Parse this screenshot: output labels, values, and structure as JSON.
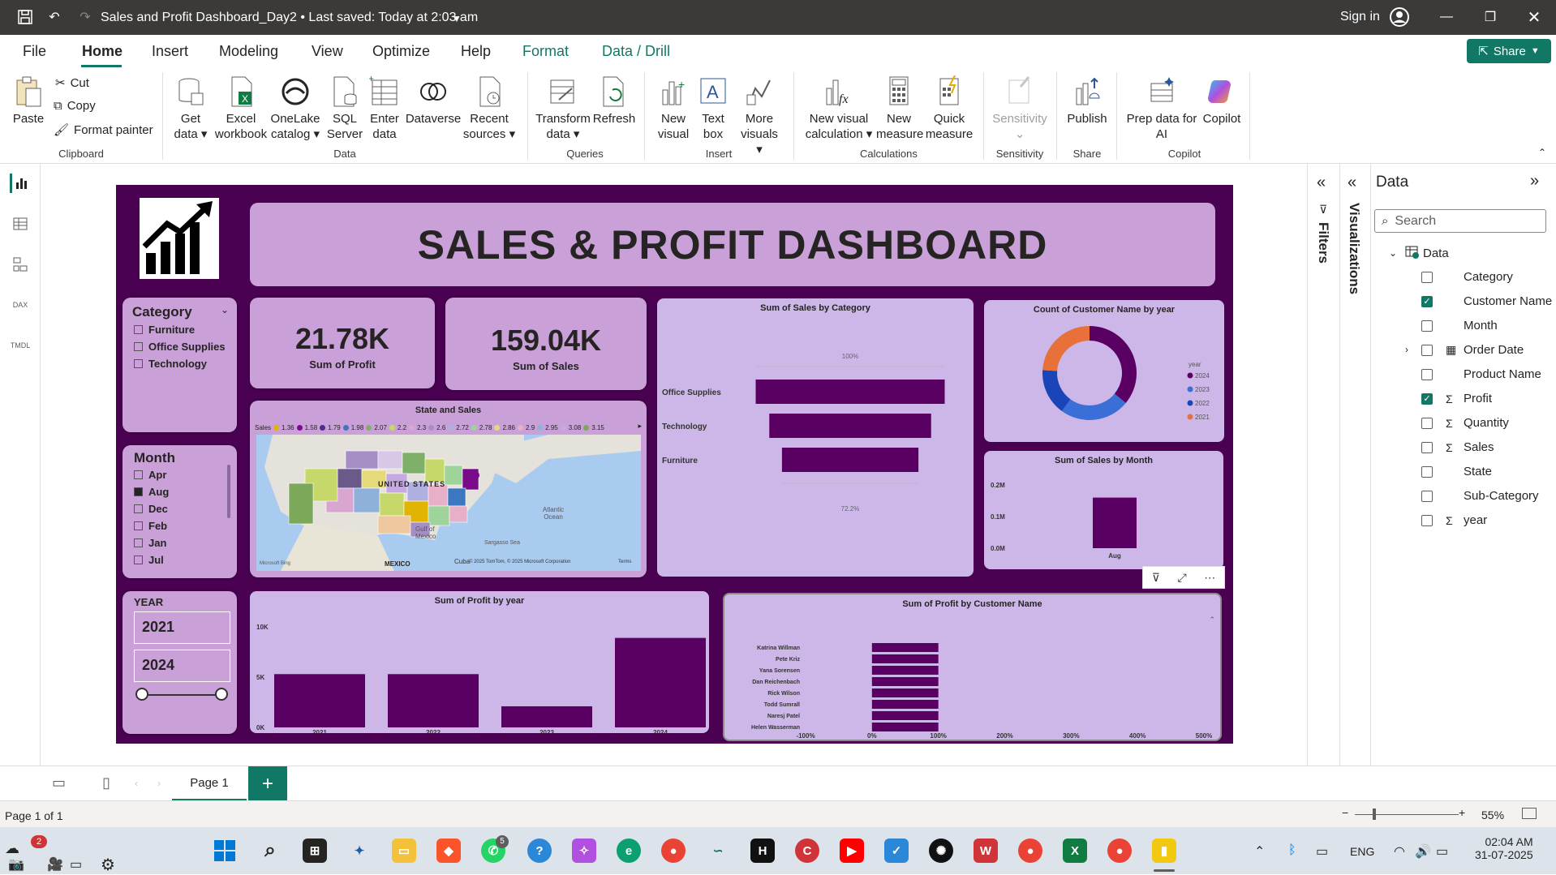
{
  "titlebar": {
    "title": "Sales and Profit Dashboard_Day2 • Last saved: Today at 2:03 am",
    "signin": "Sign in"
  },
  "menu": {
    "items": [
      "File",
      "Home",
      "Insert",
      "Modeling",
      "View",
      "Optimize",
      "Help",
      "Format",
      "Data / Drill"
    ],
    "share": "Share"
  },
  "ribbon": {
    "clipboard": {
      "paste": "Paste",
      "cut": "Cut",
      "copy": "Copy",
      "format_painter": "Format painter",
      "group": "Clipboard"
    },
    "data": {
      "get_data": "Get data",
      "excel": "Excel workbook",
      "onelake": "OneLake catalog",
      "sql": "SQL Server",
      "enter": "Enter data",
      "dataverse": "Dataverse",
      "recent": "Recent sources",
      "group": "Data"
    },
    "queries": {
      "transform": "Transform data",
      "refresh": "Refresh",
      "group": "Queries"
    },
    "insert": {
      "new_visual": "New visual",
      "text_box": "Text box",
      "more_visuals": "More visuals",
      "group": "Insert"
    },
    "calculations": {
      "new_visual_calc": "New visual calculation",
      "new_measure": "New measure",
      "quick_measure": "Quick measure",
      "group": "Calculations"
    },
    "sensitivity": {
      "label": "Sensitivity",
      "group": "Sensitivity"
    },
    "share": {
      "publish": "Publish",
      "group": "Share"
    },
    "copilot": {
      "prep": "Prep data for AI",
      "copilot": "Copilot",
      "group": "Copilot"
    }
  },
  "report": {
    "banner": "SALES & PROFIT DASHBOARD",
    "kpi_profit": {
      "value": "21.78K",
      "label": "Sum of Profit"
    },
    "kpi_sales": {
      "value": "159.04K",
      "label": "Sum of Sales"
    },
    "category_slicer": {
      "title": "Category",
      "items": [
        "Furniture",
        "Office Supplies",
        "Technology"
      ]
    },
    "month_slicer": {
      "title": "Month",
      "items": [
        "Apr",
        "Aug",
        "Dec",
        "Feb",
        "Jan",
        "Jul"
      ],
      "selected": "Aug"
    },
    "year_slicer": {
      "title": "YEAR",
      "from": "2021",
      "to": "2024"
    },
    "map": {
      "title": "State and Sales",
      "legend_label": "Sales",
      "legend_values": [
        "1.36",
        "1.58",
        "1.79",
        "1.98",
        "2.07",
        "2.2",
        "2.3",
        "2.6",
        "2.72",
        "2.78",
        "2.86",
        "2.9",
        "2.95",
        "3.08",
        "3.15"
      ],
      "legend_colors": [
        "#e0b400",
        "#7a0b8a",
        "#4f2c8c",
        "#3b78c0",
        "#7fb069",
        "#c7d86a",
        "#d9a6d2",
        "#a88cc8",
        "#b0b0e0",
        "#9ed39a",
        "#e6d97a",
        "#e8b0c8",
        "#8fb0d8",
        "#c5a9e0",
        "#7ca85a"
      ],
      "labels": {
        "country": "UNITED STATES",
        "mexico": "MEXICO",
        "gulf": "Gulf of Mexico",
        "atlantic": "Atlantic Ocean",
        "sargasso": "Sargasso Sea",
        "cuba": "Cuba",
        "credit": "© 2025 TomTom, © 2025 Microsoft Corporation",
        "terms": "Terms",
        "bing": "Microsoft Bing"
      }
    },
    "footer_icons": [
      "filter-icon",
      "focus-mode-icon",
      "more-options-icon"
    ]
  },
  "chart_data": [
    {
      "type": "bar",
      "orientation": "horizontal",
      "title": "Sum of Sales by Category",
      "categories": [
        "Office Supplies",
        "Technology",
        "Furniture"
      ],
      "values": [
        100,
        85.6,
        72.2
      ],
      "annotations": [
        "100%",
        "72.2%"
      ],
      "color": "#5a0063"
    },
    {
      "type": "pie",
      "title": "Count of Customer Name by year",
      "legend_title": "year",
      "legend_position": "right",
      "categories": [
        "2024",
        "2023",
        "2022",
        "2021"
      ],
      "values": [
        36,
        24,
        16,
        24
      ],
      "colors": [
        "#5a0063",
        "#3a6fd8",
        "#1a45b8",
        "#e8703a"
      ]
    },
    {
      "type": "bar",
      "title": "Sum of Sales by Month",
      "categories": [
        "Aug"
      ],
      "values": [
        0.16
      ],
      "ylim": [
        0,
        0.2
      ],
      "yticks": [
        "0.2M",
        "0.1M",
        "0.0M"
      ],
      "color": "#5a0063"
    },
    {
      "type": "bar",
      "title": "Sum of Profit by year",
      "categories": [
        "2021",
        "2022",
        "2023",
        "2024"
      ],
      "values": [
        5300,
        5300,
        2100,
        8900
      ],
      "ylim": [
        0,
        10000
      ],
      "yticks": [
        "10K",
        "5K",
        "0K"
      ],
      "color": "#5a0063"
    },
    {
      "type": "bar",
      "orientation": "horizontal",
      "title": "Sum of Profit by Customer Name",
      "categories": [
        "Katrina Willman",
        "Pete Kriz",
        "Yana Sorensen",
        "Dan Reichenbach",
        "Rick Wilson",
        "Todd Sumrall",
        "Naresj Patel",
        "Helen Wasserman"
      ],
      "values": [
        100,
        100,
        100,
        100,
        100,
        100,
        100,
        100
      ],
      "xlim": [
        -100,
        500
      ],
      "xticks": [
        "-100%",
        "0%",
        "100%",
        "200%",
        "300%",
        "400%",
        "500%"
      ],
      "color": "#5a0063"
    }
  ],
  "rightpane": {
    "filters": "Filters",
    "visualizations": "Visualizations",
    "data_title": "Data",
    "search_placeholder": "Search",
    "table": "Data",
    "fields": [
      {
        "name": "Category",
        "checked": false,
        "sigma": false,
        "expand": false,
        "cal": false
      },
      {
        "name": "Customer Name",
        "checked": true,
        "sigma": false,
        "expand": false,
        "cal": false
      },
      {
        "name": "Month",
        "checked": false,
        "sigma": false,
        "expand": false,
        "cal": false
      },
      {
        "name": "Order Date",
        "checked": false,
        "sigma": false,
        "expand": true,
        "cal": true
      },
      {
        "name": "Product Name",
        "checked": false,
        "sigma": false,
        "expand": false,
        "cal": false
      },
      {
        "name": "Profit",
        "checked": true,
        "sigma": true,
        "expand": false,
        "cal": false
      },
      {
        "name": "Quantity",
        "checked": false,
        "sigma": true,
        "expand": false,
        "cal": false
      },
      {
        "name": "Sales",
        "checked": false,
        "sigma": true,
        "expand": false,
        "cal": false
      },
      {
        "name": "State",
        "checked": false,
        "sigma": false,
        "expand": false,
        "cal": false
      },
      {
        "name": "Sub-Category",
        "checked": false,
        "sigma": false,
        "expand": false,
        "cal": false
      },
      {
        "name": "year",
        "checked": false,
        "sigma": true,
        "expand": false,
        "cal": false
      }
    ]
  },
  "pagebar": {
    "page_tab": "Page 1",
    "add": "+"
  },
  "statusbar": {
    "page_info": "Page 1 of 1",
    "zoom": "55%"
  },
  "taskbar": {
    "time": "02:04 AM",
    "date": "31-07-2025",
    "lang": "ENG",
    "notif_count": "2",
    "whatsapp_badge": "5"
  }
}
